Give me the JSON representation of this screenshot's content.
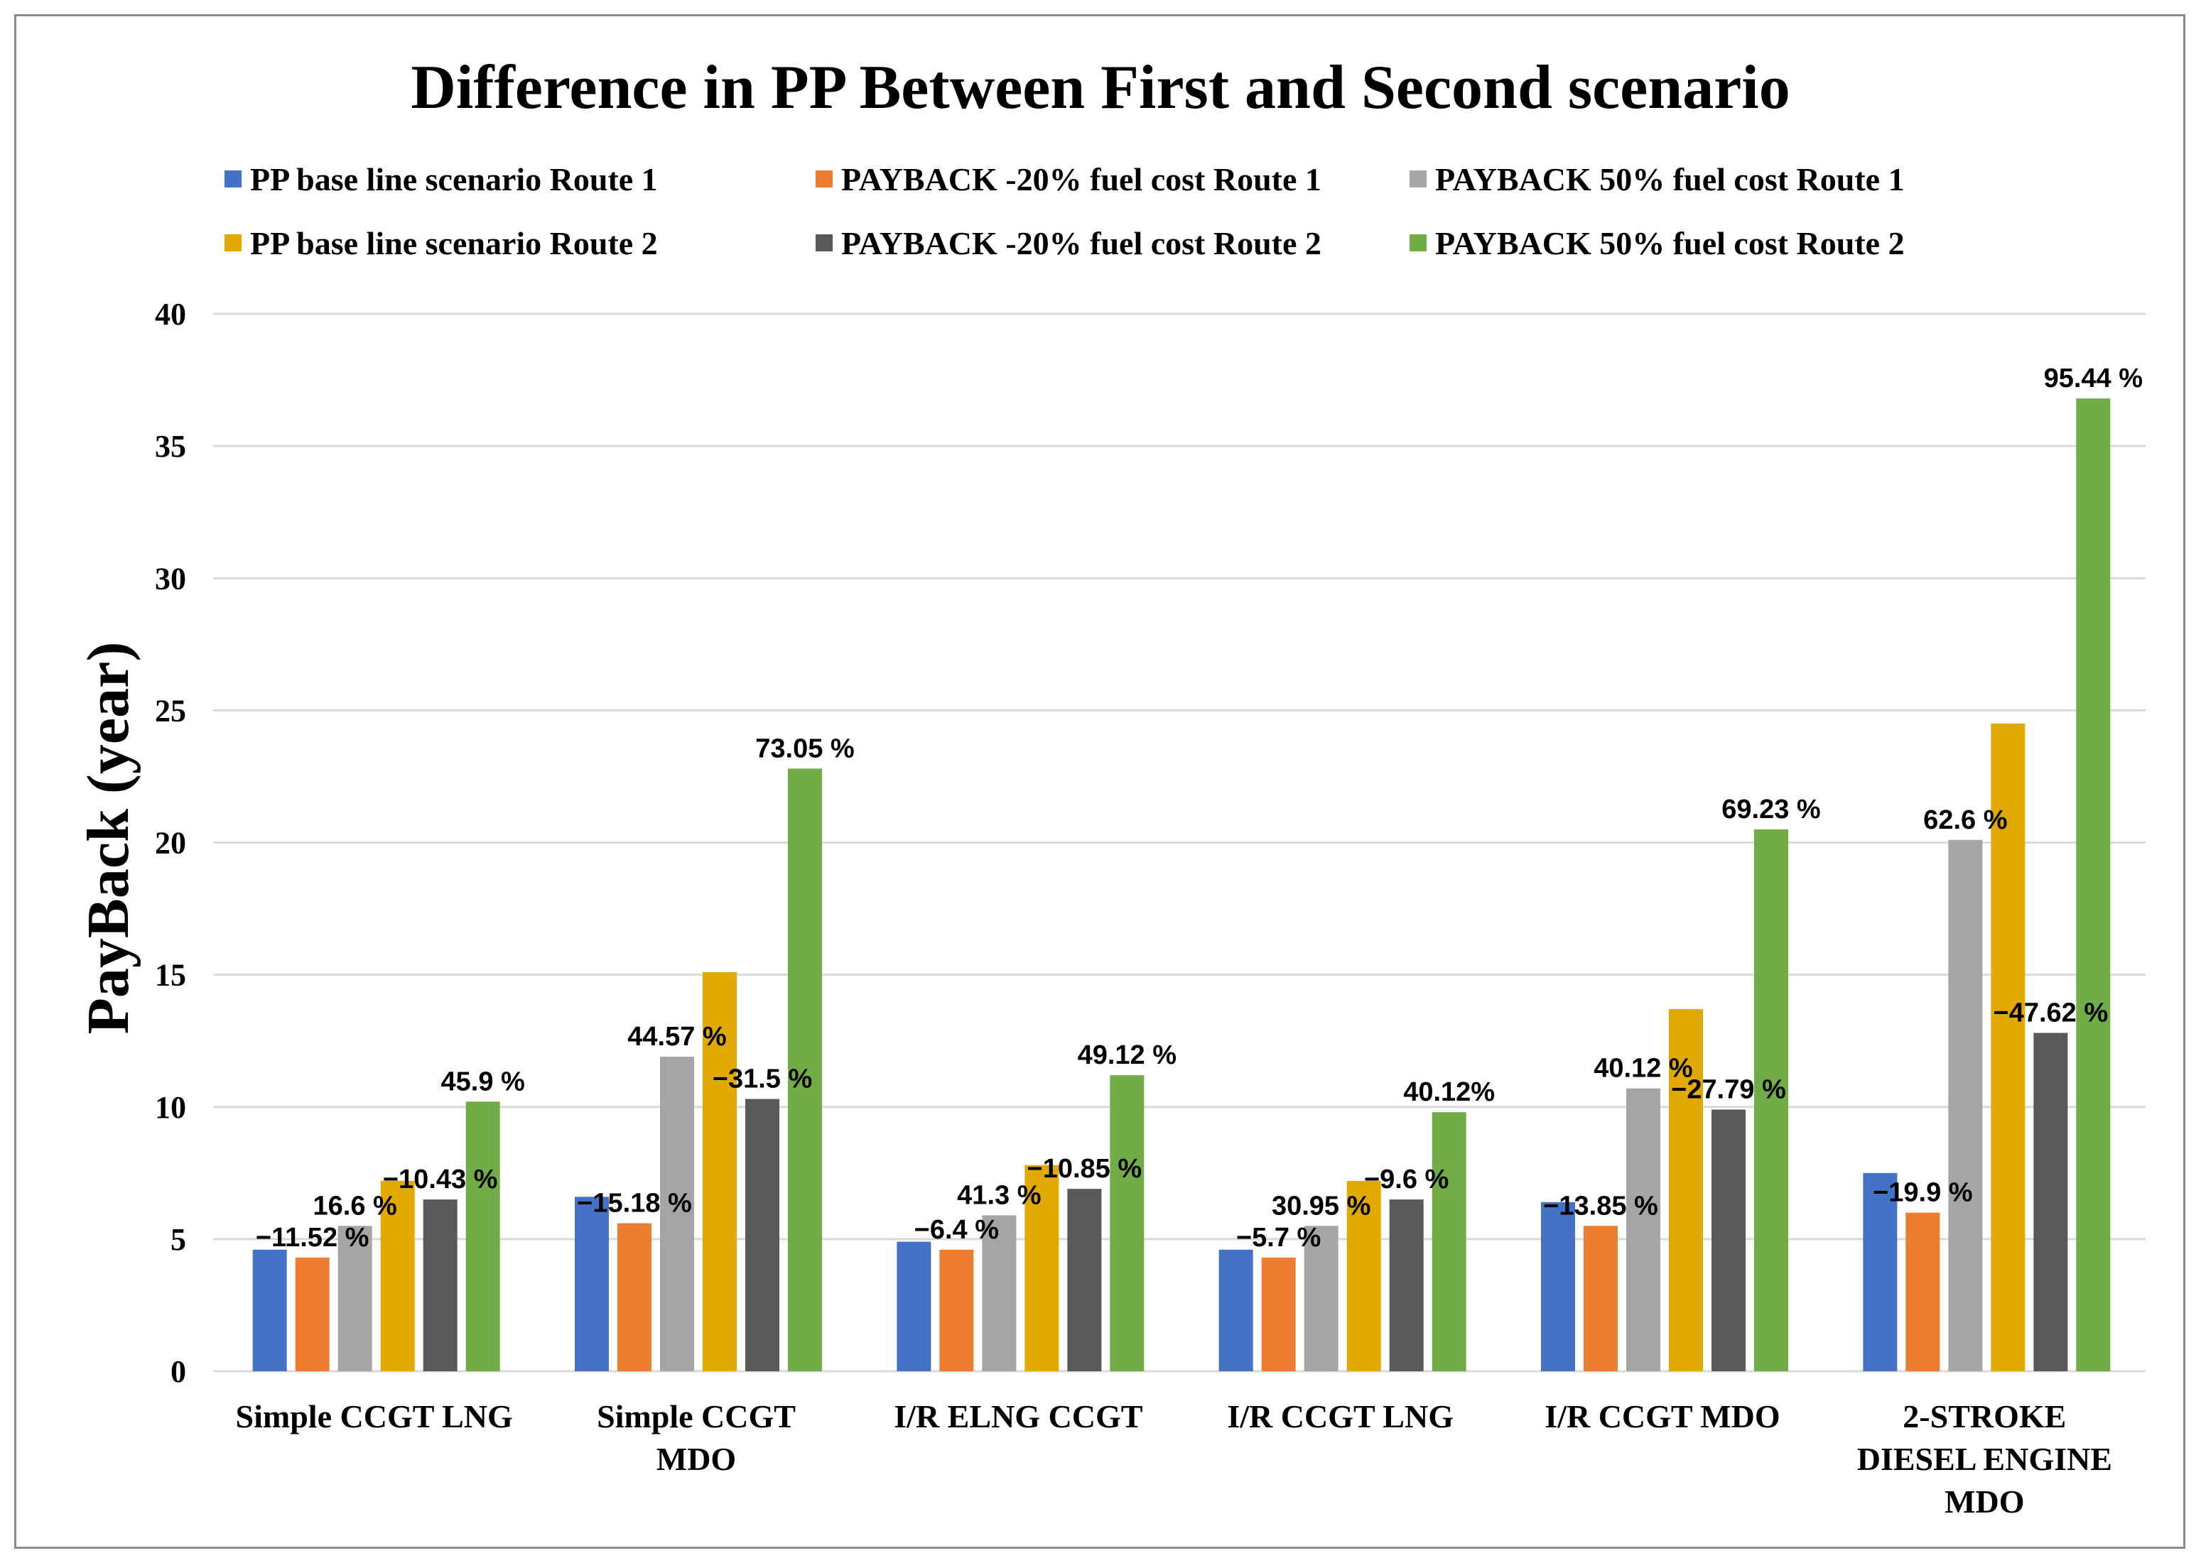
{
  "chart_data": {
    "type": "bar",
    "title": "Difference in PP Between First and Second scenario",
    "xlabel": "",
    "ylabel": "PayBack (year)",
    "ylim": [
      0,
      40
    ],
    "yticks": [
      "0",
      "5",
      "10",
      "15",
      "20",
      "25",
      "30",
      "35",
      "40"
    ],
    "grid": true,
    "legend_position": "top",
    "categories": [
      [
        "Simple CCGT LNG"
      ],
      [
        "Simple CCGT",
        "MDO"
      ],
      [
        "I/R ELNG CCGT"
      ],
      [
        "I/R CCGT LNG"
      ],
      [
        "I/R CCGT MDO"
      ],
      [
        "2-STROKE",
        "DIESEL ENGINE",
        "MDO"
      ]
    ],
    "series": [
      {
        "name": "PP base line scenario Route 1",
        "color": "#4472C4",
        "values": [
          4.6,
          6.6,
          4.9,
          4.6,
          6.4,
          7.5
        ],
        "labels": [
          "",
          "",
          "",
          "",
          "",
          ""
        ]
      },
      {
        "name": "PAYBACK -20% fuel cost Route 1",
        "color": "#ED7D31",
        "values": [
          4.3,
          5.6,
          4.6,
          4.3,
          5.5,
          6.0
        ],
        "labels": [
          "−11.52 %",
          "−15.18 %",
          "−6.4 %",
          "−5.7 %",
          "−13.85 %",
          "−19.9 %"
        ]
      },
      {
        "name": "PAYBACK 50% fuel cost Route 1",
        "color": "#A5A5A5",
        "values": [
          5.5,
          11.9,
          5.9,
          5.5,
          10.7,
          20.1
        ],
        "labels": [
          "16.6 %",
          "44.57 %",
          "41.3 %",
          "30.95 %",
          "40.12 %",
          "62.6 %"
        ]
      },
      {
        "name": "PP base line scenario Route 2",
        "color": "#E2AA00",
        "values": [
          7.2,
          15.1,
          7.8,
          7.2,
          13.7,
          24.5
        ],
        "labels": [
          "",
          "",
          "",
          "",
          "",
          ""
        ]
      },
      {
        "name": "PAYBACK -20% fuel cost Route 2",
        "color": "#595959",
        "values": [
          6.5,
          10.3,
          6.9,
          6.5,
          9.9,
          12.8
        ],
        "labels": [
          "−10.43 %",
          "−31.5 %",
          "−10.85 %",
          "−9.6 %",
          "−27.79 %",
          "−47.62 %"
        ]
      },
      {
        "name": "PAYBACK 50% fuel cost Route 2",
        "color": "#70AD47",
        "values": [
          10.2,
          22.8,
          11.2,
          9.8,
          20.5,
          36.8
        ],
        "labels": [
          "45.9 %",
          "73.05 %",
          "49.12 %",
          "40.12%",
          "69.23 %",
          "95.44 %"
        ]
      }
    ]
  }
}
